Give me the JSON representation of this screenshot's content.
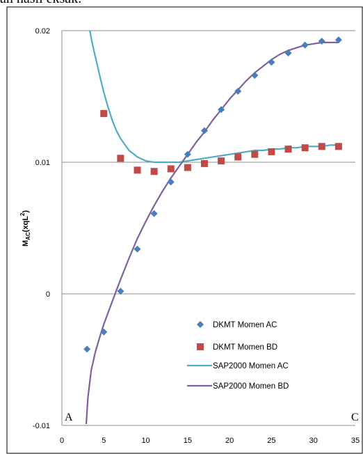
{
  "caption_fragment": "an hasil eksak.",
  "chart_data": {
    "type": "scatter",
    "title": "",
    "xlabel": "",
    "ylabel": "M_AC(xqL²)",
    "ylabel_main": "M",
    "ylabel_sub": "AC",
    "ylabel_rest": "(xqL",
    "ylabel_sup": "2",
    "ylabel_close": ")",
    "xlim": [
      0,
      35
    ],
    "ylim": [
      -0.01,
      0.02
    ],
    "x_ticks": [
      "0",
      "5",
      "10",
      "15",
      "20",
      "25",
      "30",
      "35"
    ],
    "y_ticks": [
      "-0.01",
      "0",
      "0.01",
      "0.02"
    ],
    "grid": "horizontal",
    "legend_position": "bottom-right",
    "corner_labels": {
      "left": "A",
      "right": "C"
    },
    "series": [
      {
        "name": "DKMT Momen AC",
        "kind": "markers",
        "marker": "diamond",
        "color": "#4a7ebb",
        "x": [
          3,
          5,
          7,
          9,
          11,
          13,
          15,
          17,
          19,
          21,
          23,
          25,
          27,
          29,
          31,
          33
        ],
        "y": [
          -0.0042,
          -0.0029,
          0.0002,
          0.0034,
          0.0061,
          0.0085,
          0.0106,
          0.0124,
          0.014,
          0.0154,
          0.0166,
          0.0176,
          0.0183,
          0.0189,
          0.0192,
          0.0193
        ]
      },
      {
        "name": "DKMT Momen BD",
        "kind": "markers",
        "marker": "square",
        "color": "#be4b48",
        "x": [
          5,
          7,
          9,
          11,
          13,
          15,
          17,
          19,
          21,
          23,
          25,
          27,
          29,
          31,
          33
        ],
        "y": [
          0.0137,
          0.0103,
          0.0094,
          0.0093,
          0.0095,
          0.0096,
          0.0099,
          0.0101,
          0.0104,
          0.0106,
          0.0108,
          0.011,
          0.0111,
          0.0112,
          0.0112
        ]
      },
      {
        "name": "SAP2000 Momen AC",
        "kind": "line",
        "color": "#4bacc6",
        "x": [
          3.3,
          3.6,
          4,
          4.5,
          5,
          5.5,
          6,
          6.5,
          7,
          8,
          9,
          10,
          11,
          12,
          13,
          14,
          15,
          16,
          17,
          18,
          19,
          20,
          21,
          22,
          23,
          24,
          25,
          26,
          27,
          28,
          29,
          30,
          31,
          32,
          33
        ],
        "y": [
          0.0201,
          0.0191,
          0.018,
          0.0166,
          0.0153,
          0.0142,
          0.0132,
          0.0124,
          0.0118,
          0.0109,
          0.0104,
          0.0101,
          0.01,
          0.01,
          0.01,
          0.01,
          0.0101,
          0.0102,
          0.0103,
          0.0104,
          0.0105,
          0.0106,
          0.0107,
          0.0108,
          0.0109,
          0.0109,
          0.011,
          0.011,
          0.0111,
          0.0111,
          0.0112,
          0.0112,
          0.0112,
          0.0113,
          0.0113
        ]
      },
      {
        "name": "SAP2000 Momen BD",
        "kind": "line",
        "color": "#7d60a0",
        "x": [
          2.9,
          3.1,
          3.5,
          4,
          4.5,
          5,
          6,
          7,
          8,
          9,
          10,
          11,
          12,
          13,
          14,
          15,
          16,
          17,
          18,
          19,
          20,
          21,
          22,
          23,
          24,
          25,
          26,
          27,
          28,
          29,
          30,
          31,
          32,
          33
        ],
        "y": [
          -0.0099,
          -0.0079,
          -0.0058,
          -0.0044,
          -0.0033,
          -0.0023,
          -0.0006,
          0.0011,
          0.0027,
          0.0042,
          0.0055,
          0.0067,
          0.0078,
          0.0088,
          0.0097,
          0.0106,
          0.0115,
          0.0123,
          0.0132,
          0.014,
          0.0148,
          0.0155,
          0.0162,
          0.0168,
          0.0173,
          0.0178,
          0.0182,
          0.0185,
          0.0187,
          0.0189,
          0.019,
          0.0191,
          0.0191,
          0.0191
        ]
      }
    ]
  }
}
